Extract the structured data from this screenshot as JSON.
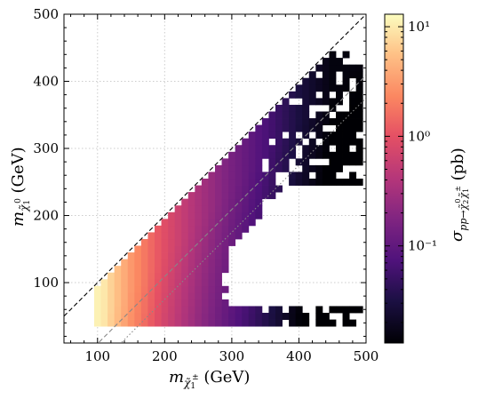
{
  "chart_data": {
    "type": "heatmap",
    "xlabel": "m_{χ̃1±} (GeV)",
    "ylabel": "m_{χ̃1⁰} (GeV)",
    "colorbar_label": "σ_{pp→χ̃2⁰χ̃1±} (pb)",
    "xlim": [
      50,
      500
    ],
    "ylim": [
      10,
      500
    ],
    "xticks": [
      100,
      200,
      300,
      400,
      500
    ],
    "yticks": [
      100,
      200,
      300,
      400,
      500
    ],
    "colorbar_scale": "log",
    "colorbar_range": [
      0.013,
      13
    ],
    "colorbar_ticks": [
      {
        "value": 10,
        "label": "10¹"
      },
      {
        "value": 1,
        "label": "10⁰"
      },
      {
        "value": 0.1,
        "label": "10⁻¹"
      }
    ],
    "colormap": "magma",
    "grid": true,
    "grid_style": "dotted",
    "bin_width_gev": 10,
    "reference_lines": [
      {
        "name": "diagonal",
        "style": "dashed",
        "color": "#000000",
        "offset": 0
      },
      {
        "name": "offset-Z",
        "style": "dashed",
        "color": "#888888",
        "offset": 91
      },
      {
        "name": "offset-h",
        "style": "dotted",
        "color": "#888888",
        "offset": 125
      }
    ],
    "region": {
      "description": "Filled bins below the diagonal m_chi1pm - m_chi10 >= 0",
      "x_range": [
        100,
        490
      ],
      "y_range": [
        40,
        445
      ]
    },
    "sample_values": [
      {
        "x": 105,
        "y": 75,
        "sigma": 11
      },
      {
        "x": 150,
        "y": 100,
        "sigma": 3
      },
      {
        "x": 200,
        "y": 150,
        "sigma": 0.9
      },
      {
        "x": 250,
        "y": 200,
        "sigma": 0.35
      },
      {
        "x": 300,
        "y": 250,
        "sigma": 0.15
      },
      {
        "x": 350,
        "y": 300,
        "sigma": 0.07
      },
      {
        "x": 400,
        "y": 380,
        "sigma": 0.03
      },
      {
        "x": 450,
        "y": 420,
        "sigma": 0.015
      }
    ]
  },
  "labels": {
    "x_axis_main": "m",
    "x_axis_unit": " (GeV)",
    "x_axis_sub": "χ̃",
    "x_axis_sub2": "1",
    "x_axis_sup": "±",
    "y_axis_main": "m",
    "y_axis_unit": " (GeV)",
    "y_axis_sub": "χ̃",
    "y_axis_sub2": "1",
    "y_axis_sup": "0",
    "cbar_main": "σ",
    "cbar_sub": "pp→χ̃",
    "cbar_sub2": "2",
    "cbar_sup": "0",
    "cbar_sub3": "χ̃",
    "cbar_sub4": "1",
    "cbar_sup2": "±",
    "cbar_unit": " (pb)"
  }
}
